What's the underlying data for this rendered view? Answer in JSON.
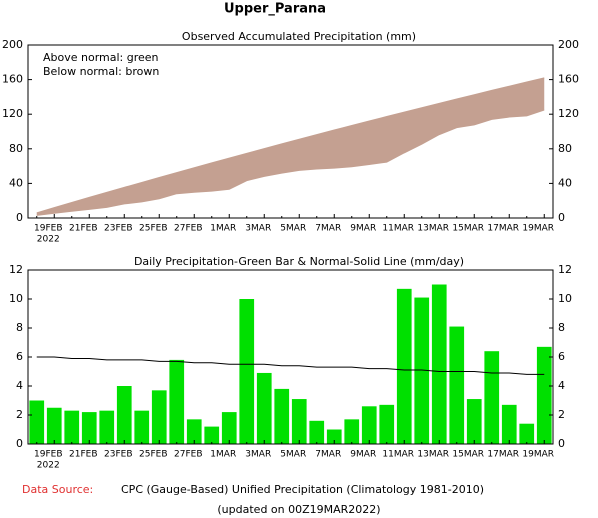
{
  "title": "Upper_Parana",
  "chart_data": [
    {
      "type": "accumulated",
      "title": "Observed Accumulated Precipitation (mm)",
      "annotations": [
        "Above normal: green",
        "Below normal: brown"
      ],
      "categories": [
        null,
        "19FEB",
        null,
        "21FEB",
        null,
        "23FEB",
        null,
        "25FEB",
        null,
        "27FEB",
        null,
        "1MAR",
        null,
        "3MAR",
        null,
        "5MAR",
        null,
        "7MAR",
        null,
        "9MAR",
        null,
        "11MAR",
        null,
        "13MAR",
        null,
        "15MAR",
        null,
        "17MAR",
        null,
        "19MAR"
      ],
      "year": "2022",
      "normal": {
        "values": [
          6.0,
          12.0,
          17.9,
          23.8,
          29.6,
          35.4,
          41.1,
          46.8,
          52.5,
          58.1,
          63.7,
          69.3,
          74.8,
          80.2,
          85.7,
          91.0,
          96.4,
          101.7,
          106.9,
          112.1,
          117.3,
          122.4,
          127.5,
          132.6,
          137.6,
          142.5,
          147.5,
          152.3,
          157.2,
          162.0
        ]
      },
      "observed": {
        "values": [
          3.0,
          5.5,
          7.8,
          10.0,
          12.3,
          16.3,
          18.6,
          22.3,
          28.1,
          29.8,
          31.0,
          33.2,
          43.2,
          48.1,
          51.9,
          55.0,
          56.6,
          57.6,
          59.3,
          61.9,
          64.6,
          75.3,
          85.4,
          96.4,
          104.5,
          107.6,
          114.0,
          116.7,
          118.1,
          124.8
        ]
      },
      "below_color": "#c4a091",
      "above_color": "#00e000",
      "ylim": [
        0,
        200
      ],
      "yticks": [
        0,
        40,
        80,
        120,
        160,
        200
      ]
    },
    {
      "type": "bar",
      "title": "Daily Precipitation-Green Bar & Normal-Solid Line (mm/day)",
      "categories": [
        null,
        "19FEB",
        null,
        "21FEB",
        null,
        "23FEB",
        null,
        "25FEB",
        null,
        "27FEB",
        null,
        "1MAR",
        null,
        "3MAR",
        null,
        "5MAR",
        null,
        "7MAR",
        null,
        "9MAR",
        null,
        "11MAR",
        null,
        "13MAR",
        null,
        "15MAR",
        null,
        "17MAR",
        null,
        "19MAR"
      ],
      "year": "2022",
      "values": [
        3.0,
        2.5,
        2.3,
        2.2,
        2.3,
        4.0,
        2.3,
        3.7,
        5.8,
        1.7,
        1.2,
        2.2,
        10.0,
        4.9,
        3.8,
        3.1,
        1.6,
        1.0,
        1.7,
        2.6,
        2.7,
        10.7,
        10.1,
        11.0,
        8.1,
        3.1,
        6.4,
        2.7,
        1.4,
        6.7
      ],
      "color": "#00e000",
      "normal": {
        "values": [
          6.0,
          6.0,
          5.9,
          5.9,
          5.8,
          5.8,
          5.8,
          5.7,
          5.7,
          5.6,
          5.6,
          5.5,
          5.5,
          5.5,
          5.4,
          5.4,
          5.3,
          5.3,
          5.3,
          5.2,
          5.2,
          5.1,
          5.1,
          5.0,
          5.0,
          5.0,
          4.9,
          4.9,
          4.8,
          4.8
        ],
        "color": "#000000"
      },
      "ylim": [
        0,
        12
      ],
      "yticks": [
        0,
        2,
        4,
        6,
        8,
        10,
        12
      ]
    }
  ],
  "footer": {
    "source_label": "Data Source:",
    "source_text": "CPC (Gauge-Based) Unified Precipitation (Climatology 1981-2010)",
    "updated": "(updated on 00Z19MAR2022)"
  }
}
